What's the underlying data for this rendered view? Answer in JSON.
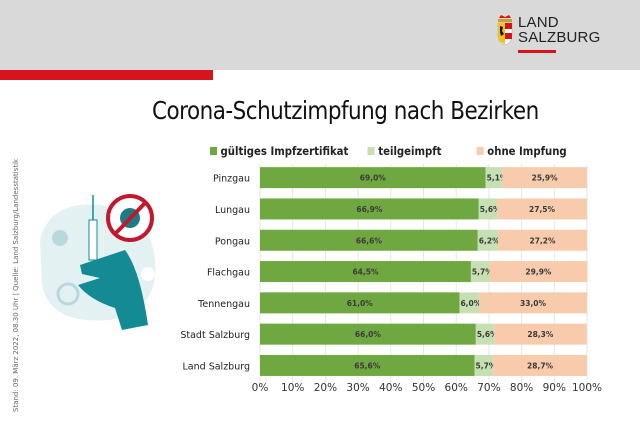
{
  "header": {
    "logo_line1": "LAND",
    "logo_line2": "SALZBURG"
  },
  "side_caption": "Stand: 09. März 2022, 08.30 Uhr  |  Quelle: Land Salzburg/Landesstatistik",
  "colors": {
    "series1": "#6fa841",
    "series2": "#c6e0b4",
    "series3": "#f8cbad",
    "accent_red": "#d8131b",
    "header_gray": "#d9d9d9",
    "illustration_teal": "#138a94"
  },
  "icons": [
    "coat-of-arms-icon",
    "hand-syringe-icon",
    "no-virus-icon",
    "virus-icon"
  ],
  "chart_data": {
    "type": "bar",
    "orientation": "horizontal",
    "stacked": true,
    "title": "Corona-Schutzimpfung nach Bezirken",
    "categories": [
      "Pinzgau",
      "Lungau",
      "Pongau",
      "Flachgau",
      "Tennengau",
      "Stadt Salzburg",
      "Land Salzburg"
    ],
    "series": [
      {
        "name": "gültiges Impfzertifikat",
        "values": [
          69.0,
          66.9,
          66.6,
          64.5,
          61.0,
          66.0,
          65.6
        ],
        "labels": [
          "69,0%",
          "66,9%",
          "66,6%",
          "64,5%",
          "61,0%",
          "66,0%",
          "65,6%"
        ]
      },
      {
        "name": "teilgeimpft",
        "values": [
          5.1,
          5.6,
          6.2,
          5.7,
          6.0,
          5.6,
          5.7
        ],
        "labels": [
          "5,1%",
          "5,6%",
          "6,2%",
          "5,7%",
          "6,0%",
          "5,6%",
          "5,7%"
        ]
      },
      {
        "name": "ohne Impfung",
        "values": [
          25.9,
          27.5,
          27.2,
          29.9,
          33.0,
          28.3,
          28.7
        ],
        "labels": [
          "25,9%",
          "27,5%",
          "27,2%",
          "29,9%",
          "33,0%",
          "28,3%",
          "28,7%"
        ]
      }
    ],
    "xlim": [
      0,
      100
    ],
    "xticks": [
      "0%",
      "10%",
      "20%",
      "30%",
      "40%",
      "50%",
      "60%",
      "70%",
      "80%",
      "90%",
      "100%"
    ],
    "grid": true,
    "legend": "top"
  }
}
